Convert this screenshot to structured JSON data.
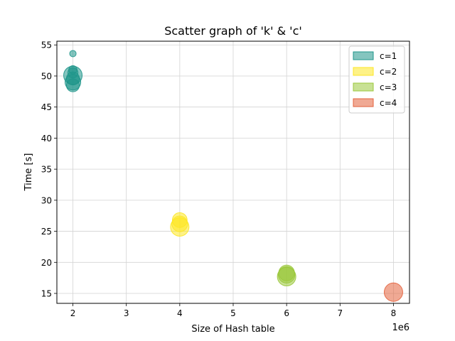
{
  "chart_data": {
    "type": "scatter",
    "title": "Scatter graph of 'k' & 'c'",
    "xlabel": "Size of Hash table",
    "ylabel": "Time [s]",
    "x_offset_label": "1e6",
    "xlim": [
      1.7,
      8.3
    ],
    "ylim": [
      13.4,
      55.6
    ],
    "xticks": [
      2,
      3,
      4,
      5,
      6,
      7,
      8
    ],
    "yticks": [
      15,
      20,
      25,
      30,
      35,
      40,
      45,
      50,
      55
    ],
    "grid": true,
    "legend_position": "top-right",
    "series": [
      {
        "name": "c=1",
        "color": "#1f968b",
        "points": [
          {
            "x": 2,
            "y": 53.6,
            "size": 0.35
          },
          {
            "x": 2,
            "y": 51.0,
            "size": 0.45
          },
          {
            "x": 2,
            "y": 50.5,
            "size": 0.55
          },
          {
            "x": 2,
            "y": 50.1,
            "size": 1.0
          },
          {
            "x": 2,
            "y": 49.6,
            "size": 0.7
          },
          {
            "x": 2,
            "y": 49.0,
            "size": 0.85
          },
          {
            "x": 2,
            "y": 48.5,
            "size": 0.7
          }
        ]
      },
      {
        "name": "c=2",
        "color": "#fde725",
        "points": [
          {
            "x": 4,
            "y": 26.8,
            "size": 0.8
          },
          {
            "x": 4,
            "y": 26.2,
            "size": 0.85
          },
          {
            "x": 4,
            "y": 25.7,
            "size": 1.0
          }
        ]
      },
      {
        "name": "c=3",
        "color": "#9bc83c",
        "points": [
          {
            "x": 6,
            "y": 18.3,
            "size": 0.85
          },
          {
            "x": 6,
            "y": 18.0,
            "size": 0.9
          },
          {
            "x": 6,
            "y": 17.7,
            "size": 1.0
          }
        ]
      },
      {
        "name": "c=4",
        "color": "#e4623d",
        "points": [
          {
            "x": 8,
            "y": 15.2,
            "size": 1.0
          }
        ]
      }
    ]
  }
}
